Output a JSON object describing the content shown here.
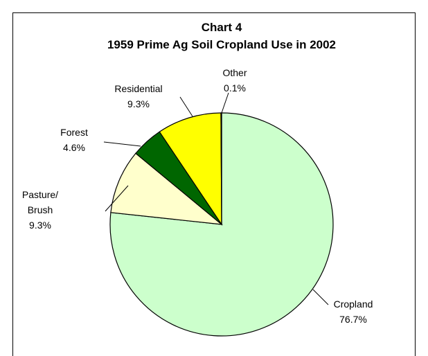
{
  "chart_data": {
    "type": "pie",
    "title": "Chart 4",
    "subtitle": "1959 Prime Ag Soil Cropland Use in 2002",
    "categories": [
      "Cropland",
      "Pasture/\nBrush",
      "Forest",
      "Residential",
      "Other"
    ],
    "values": [
      76.7,
      9.3,
      4.6,
      9.3,
      0.1
    ],
    "value_labels": [
      "76.7%",
      "9.3%",
      "4.6%",
      "9.3%",
      "0.1%"
    ],
    "colors": [
      "#ccffcc",
      "#ffffcc",
      "#006600",
      "#ffff00",
      "#ffff99"
    ]
  }
}
